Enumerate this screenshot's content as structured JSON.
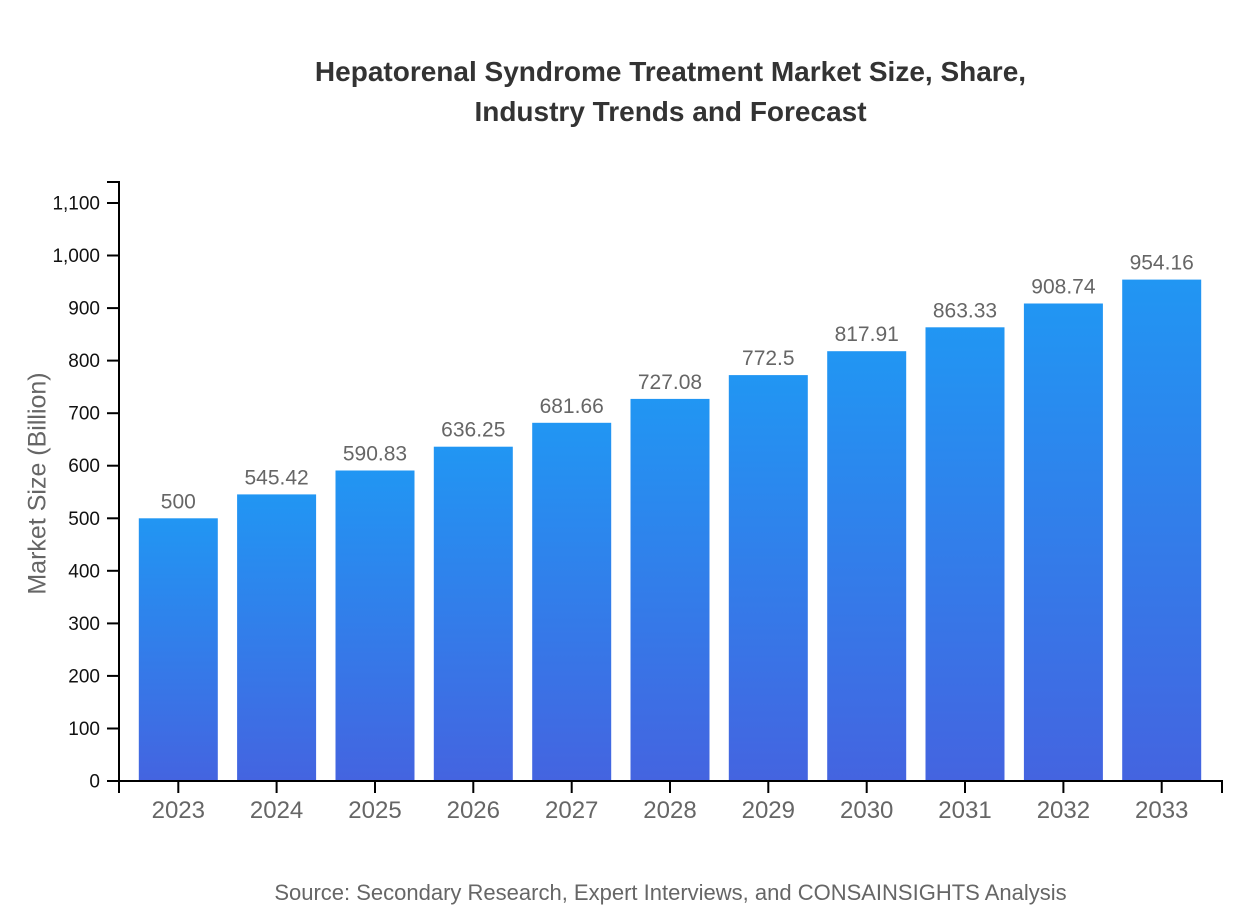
{
  "title": {
    "line1": "Hepatorenal Syndrome Treatment Market Size, Share,",
    "line2": "Industry Trends and Forecast"
  },
  "source": "Source: Secondary Research, Expert Interviews, and CONSAINSIGHTS Analysis",
  "chart_data": {
    "type": "bar",
    "title": "Hepatorenal Syndrome Treatment Market Size, Share, Industry Trends and Forecast",
    "categories": [
      "2023",
      "2024",
      "2025",
      "2026",
      "2027",
      "2028",
      "2029",
      "2030",
      "2031",
      "2032",
      "2033"
    ],
    "values": [
      500,
      545.42,
      590.83,
      636.25,
      681.66,
      727.08,
      772.5,
      817.91,
      863.33,
      908.74,
      954.16
    ],
    "value_labels": [
      "500",
      "545.42",
      "590.83",
      "636.25",
      "681.66",
      "727.08",
      "772.5",
      "817.91",
      "863.33",
      "908.74",
      "954.16"
    ],
    "xlabel": "",
    "ylabel": "Market Size (Billion)",
    "ylim": [
      0,
      1100
    ],
    "ytick_interval": 100,
    "ytick_labels": [
      "0",
      "100",
      "200",
      "300",
      "400",
      "500",
      "600",
      "700",
      "800",
      "900",
      "1,000",
      "1,100"
    ],
    "grid": false,
    "legend": false,
    "colors": {
      "bar_gradient_top": "#2196F3",
      "bar_gradient_bottom": "#4464E0",
      "axis_line": "#000000",
      "y_tick_label": "#111111",
      "x_tick_label": "#666666",
      "value_label": "#666666",
      "title_text": "#333333",
      "source_text": "#666666"
    }
  }
}
